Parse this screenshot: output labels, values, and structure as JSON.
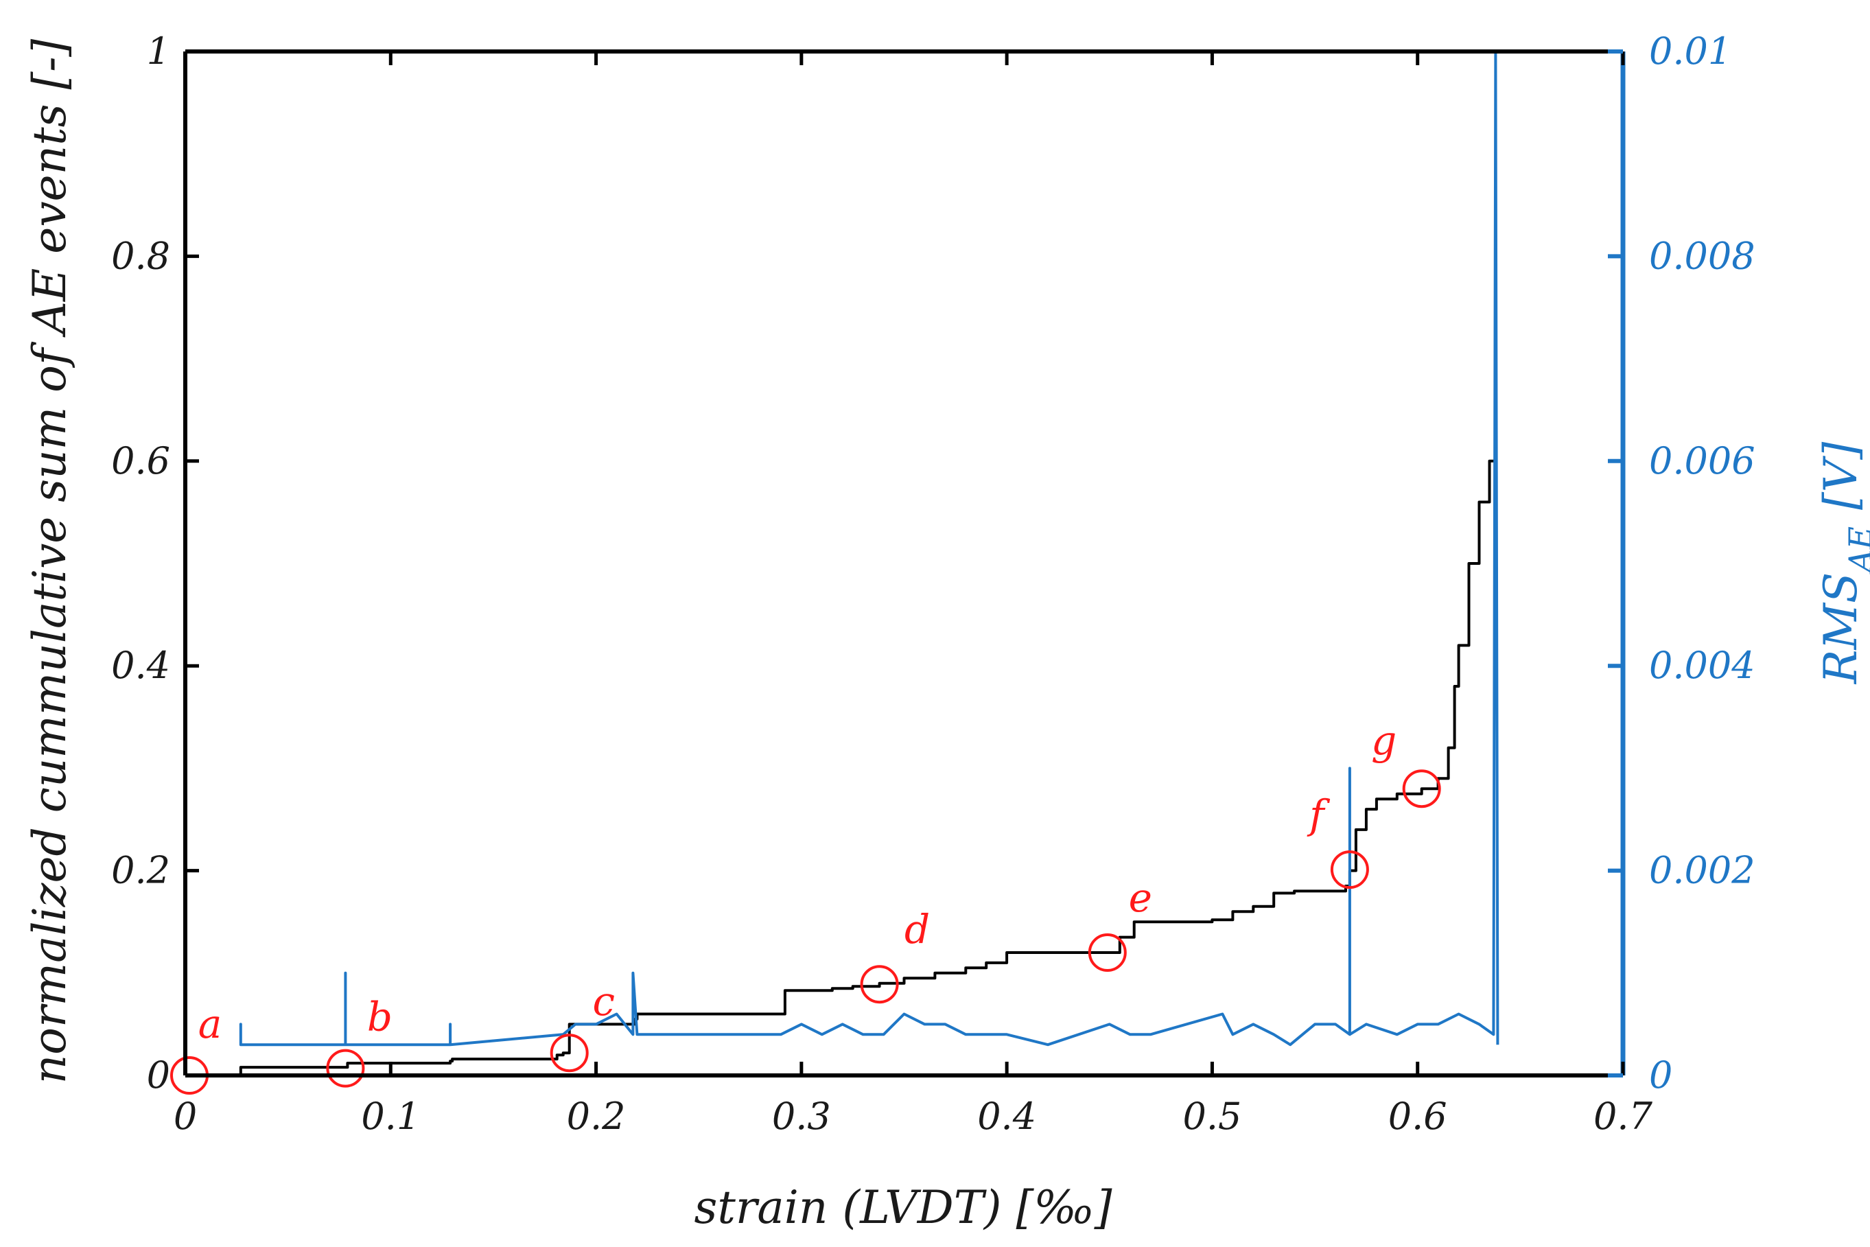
{
  "chart_data": {
    "type": "line",
    "xlabel": "strain (LVDT) [‰]",
    "ylabel": "normalized cummulative sum of AE events [-]",
    "ylabel_right": "RMS",
    "ylabel_right_subscript": "AE",
    "ylabel_right_unit": "[V]",
    "xlim": [
      0,
      0.7
    ],
    "ylim": [
      0,
      1
    ],
    "ylim_right": [
      0,
      0.01
    ],
    "x_ticks": [
      "0",
      "0.1",
      "0.2",
      "0.3",
      "0.4",
      "0.5",
      "0.6",
      "0.7"
    ],
    "y_ticks": [
      "0",
      "0.2",
      "0.4",
      "0.6",
      "0.8",
      "1"
    ],
    "y_ticks_right": [
      "0",
      "0.002",
      "0.004",
      "0.006",
      "0.008",
      "0.01"
    ],
    "colors": {
      "cumulative": "#000000",
      "rms": "#1f77c6",
      "markers": "#ff1a1a"
    },
    "series": [
      {
        "name": "normalized cumulative sum of AE events",
        "axis": "left",
        "x": [
          0.027,
          0.027,
          0.075,
          0.079,
          0.081,
          0.129,
          0.13,
          0.181,
          0.184,
          0.187,
          0.219,
          0.22,
          0.291,
          0.292,
          0.3,
          0.315,
          0.325,
          0.338,
          0.35,
          0.365,
          0.38,
          0.39,
          0.4,
          0.42,
          0.43,
          0.449,
          0.455,
          0.462,
          0.47,
          0.5,
          0.51,
          0.52,
          0.53,
          0.54,
          0.555,
          0.565,
          0.567,
          0.57,
          0.575,
          0.58,
          0.59,
          0.602,
          0.61,
          0.615,
          0.618,
          0.62,
          0.625,
          0.63,
          0.635,
          0.638
        ],
        "y": [
          0.0,
          0.008,
          0.008,
          0.012,
          0.012,
          0.014,
          0.016,
          0.02,
          0.022,
          0.05,
          0.055,
          0.06,
          0.06,
          0.083,
          0.083,
          0.085,
          0.087,
          0.09,
          0.095,
          0.1,
          0.105,
          0.11,
          0.12,
          0.12,
          0.12,
          0.12,
          0.135,
          0.15,
          0.15,
          0.152,
          0.16,
          0.165,
          0.178,
          0.18,
          0.18,
          0.185,
          0.2,
          0.24,
          0.26,
          0.27,
          0.275,
          0.28,
          0.29,
          0.32,
          0.38,
          0.42,
          0.5,
          0.56,
          0.6,
          0.65
        ]
      },
      {
        "name": "RMS_AE",
        "axis": "right",
        "x": [
          0.027,
          0.027,
          0.027,
          0.078,
          0.078,
          0.078,
          0.129,
          0.129,
          0.129,
          0.184,
          0.19,
          0.2,
          0.21,
          0.218,
          0.218,
          0.22,
          0.29,
          0.3,
          0.31,
          0.32,
          0.33,
          0.34,
          0.35,
          0.36,
          0.37,
          0.38,
          0.4,
          0.42,
          0.45,
          0.46,
          0.47,
          0.505,
          0.51,
          0.52,
          0.53,
          0.538,
          0.55,
          0.56,
          0.567,
          0.567,
          0.567,
          0.575,
          0.59,
          0.6,
          0.61,
          0.62,
          0.63,
          0.637,
          0.638,
          0.639,
          0.639
        ],
        "y": [
          0.0003,
          0.0005,
          0.0003,
          0.0003,
          0.001,
          0.0003,
          0.0003,
          0.0005,
          0.0003,
          0.0004,
          0.0005,
          0.0005,
          0.0006,
          0.0004,
          0.001,
          0.0004,
          0.0004,
          0.0005,
          0.0004,
          0.0005,
          0.0004,
          0.0004,
          0.0006,
          0.0005,
          0.0005,
          0.0004,
          0.0004,
          0.0003,
          0.0005,
          0.0004,
          0.0004,
          0.0006,
          0.0004,
          0.0005,
          0.0004,
          0.0003,
          0.0005,
          0.0005,
          0.0004,
          0.003,
          0.0004,
          0.0005,
          0.0004,
          0.0005,
          0.0005,
          0.0006,
          0.0005,
          0.0004,
          0.01,
          0.0004,
          0.0003
        ]
      }
    ],
    "markers": [
      {
        "label": "a",
        "x": 0.002,
        "y": 0.0
      },
      {
        "label": "b",
        "x": 0.078,
        "y": 0.007
      },
      {
        "label": "c",
        "x": 0.187,
        "y": 0.022
      },
      {
        "label": "d",
        "x": 0.338,
        "y": 0.089
      },
      {
        "label": "e",
        "x": 0.449,
        "y": 0.12
      },
      {
        "label": "f",
        "x": 0.567,
        "y": 0.201
      },
      {
        "label": "g",
        "x": 0.602,
        "y": 0.28
      }
    ]
  }
}
